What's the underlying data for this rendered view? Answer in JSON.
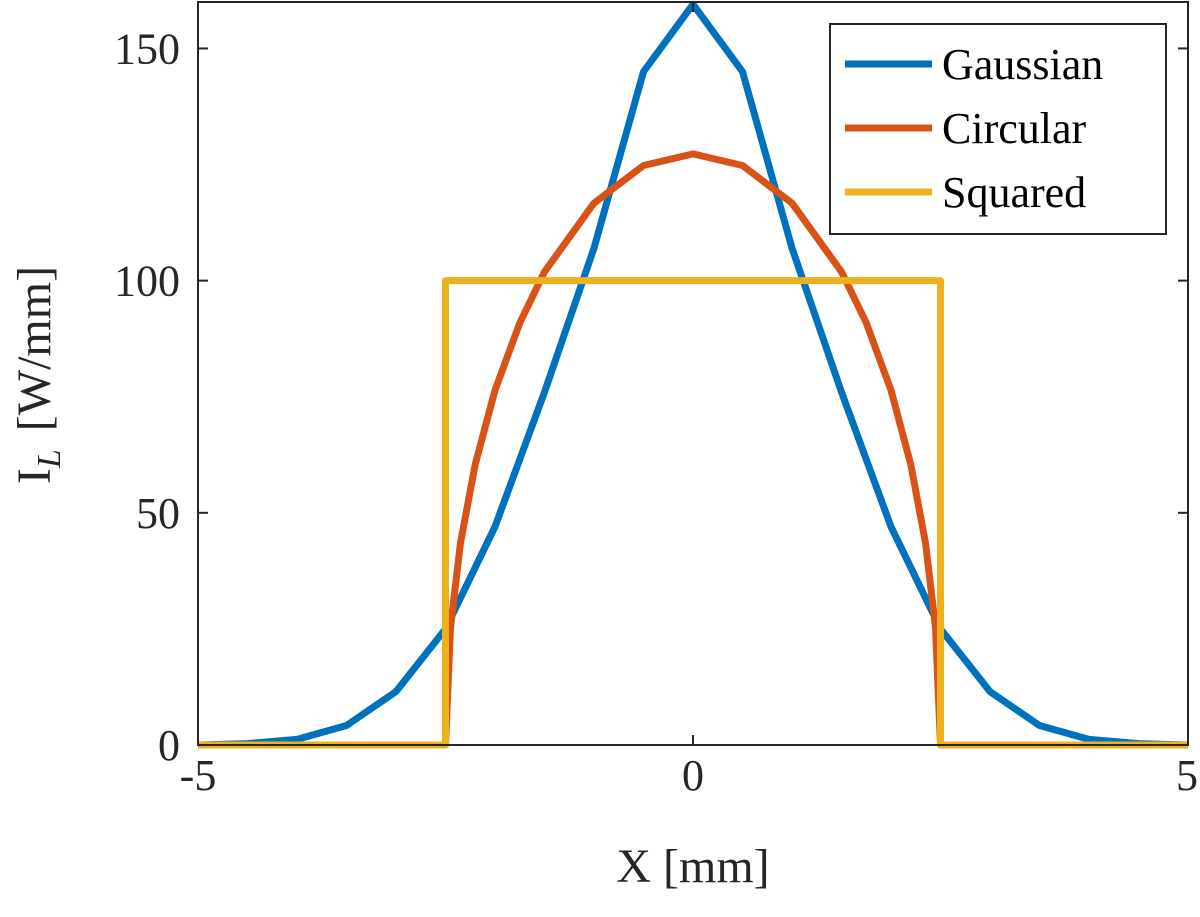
{
  "chart_data": {
    "type": "line",
    "title": "",
    "xlabel": "X [mm]",
    "ylabel_main": "I",
    "ylabel_sub": "L",
    "ylabel_units": "[W/mm]",
    "xlim": [
      -5,
      5
    ],
    "ylim": [
      0,
      160
    ],
    "xticks": [
      -5,
      0,
      5
    ],
    "xtick_labels": [
      "-5",
      "0",
      "5"
    ],
    "yticks": [
      0,
      50,
      100,
      150
    ],
    "ytick_labels": [
      "0",
      "50",
      "100",
      "150"
    ],
    "grid": false,
    "legend_position": "top-right",
    "series": [
      {
        "name": "Gaussian",
        "color": "#0072BD",
        "x": [
          -5.0,
          -4.5,
          -4.0,
          -3.5,
          -3.0,
          -2.5,
          -2.0,
          -1.5,
          -1.0,
          -0.5,
          0.0,
          0.5,
          1.0,
          1.5,
          2.0,
          2.5,
          3.0,
          3.5,
          4.0,
          4.5,
          5.0
        ],
        "y": [
          0.0,
          0.3,
          1.2,
          4.2,
          11.5,
          25.0,
          47.0,
          76.0,
          107.0,
          145.0,
          159.5,
          145.0,
          107.0,
          76.0,
          47.0,
          25.0,
          11.5,
          4.2,
          1.2,
          0.3,
          0.0
        ]
      },
      {
        "name": "Circular",
        "color": "#D95319",
        "x": [
          -5.0,
          -2.5,
          -2.45,
          -2.35,
          -2.2,
          -2.0,
          -1.75,
          -1.5,
          -1.0,
          -0.5,
          0.0,
          0.5,
          1.0,
          1.5,
          1.75,
          2.0,
          2.2,
          2.35,
          2.45,
          2.5,
          5.0
        ],
        "y": [
          0.0,
          0.0,
          25.3,
          43.4,
          60.4,
          76.4,
          90.9,
          101.9,
          116.7,
          124.8,
          127.3,
          124.8,
          116.7,
          101.9,
          90.9,
          76.4,
          60.4,
          43.4,
          25.3,
          0.0,
          0.0
        ]
      },
      {
        "name": "Squared",
        "color": "#EDB120",
        "x": [
          -5.0,
          -2.5,
          -2.5,
          2.5,
          2.5,
          5.0
        ],
        "y": [
          0.0,
          0.0,
          100.0,
          100.0,
          0.0,
          0.0
        ]
      }
    ]
  }
}
